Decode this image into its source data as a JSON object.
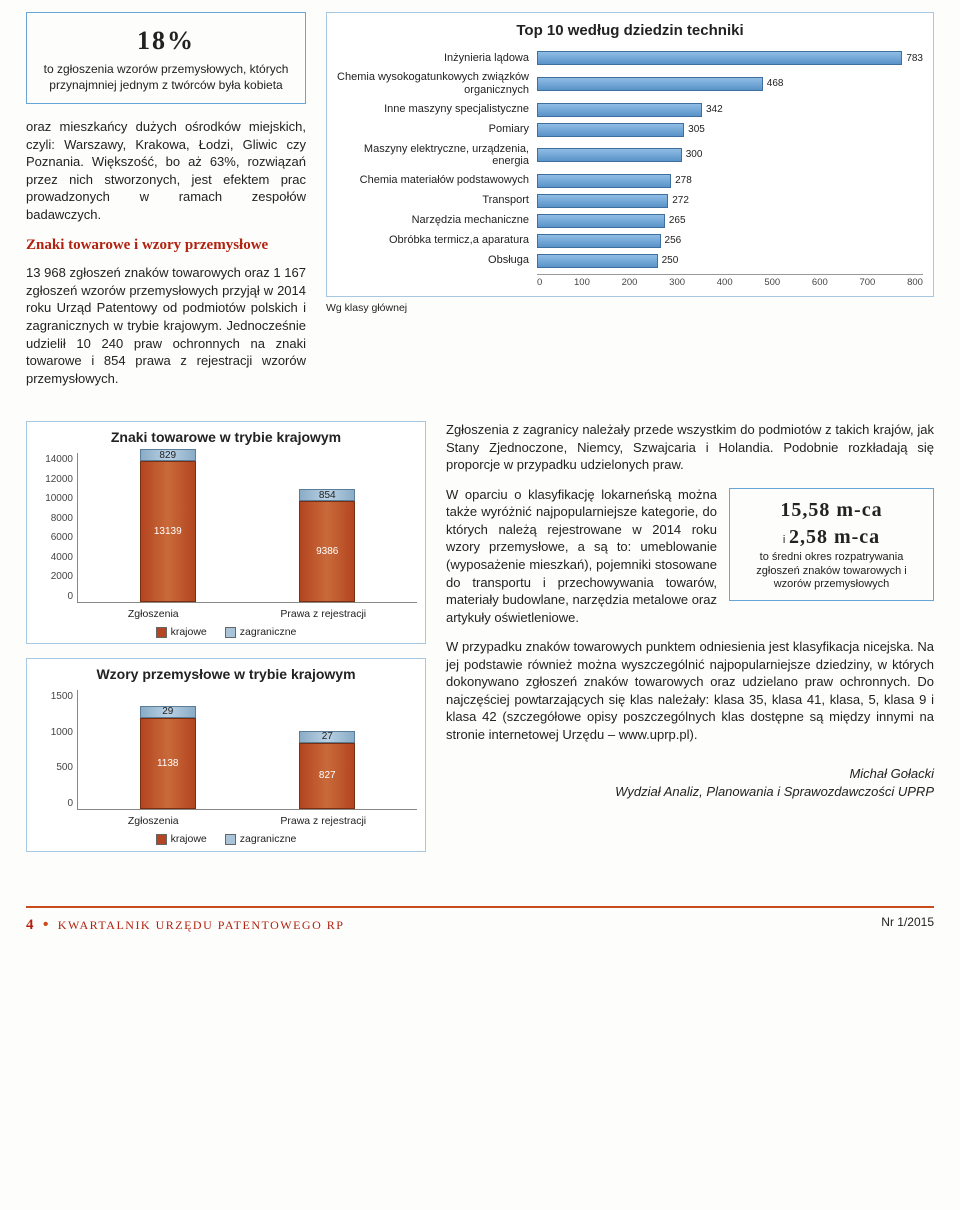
{
  "stat_box": {
    "value": "18%",
    "desc": "to zgłoszenia wzorów przemysłowych, których przynajmniej jednym z twórców była kobieta"
  },
  "para1": "oraz mieszkańcy dużych ośrodków miejskich, czyli: Warszawy, Krakowa, Łodzi, Gliwic czy Poznania. Większość, bo aż 63%, rozwiązań przez nich stworzonych, jest efektem prac prowadzonych w ramach zespołów badawczych.",
  "subhead": "Znaki towarowe i wzory przemysłowe",
  "para2": "13 968 zgłoszeń znaków towarowych oraz 1 167 zgłoszeń wzorów przemysłowych przyjął w 2014 roku Urząd Patentowy od podmiotów polskich i zagranicznych w trybie krajowym. Jednocześnie udzielił 10 240 praw ochronnych na znaki towarowe i 854 prawa z rejestracji wzorów przemysłowych.",
  "top10": {
    "title": "Top 10 według dziedzin techniki",
    "caption": "Wg klasy głównej",
    "xmax": 800,
    "xticks": [
      "0",
      "100",
      "200",
      "300",
      "400",
      "500",
      "600",
      "700",
      "800"
    ],
    "bar_color": "#6ea3d4",
    "items": [
      {
        "label": "Inżynieria lądowa",
        "value": 783
      },
      {
        "label": "Chemia wysokogatunkowych związków organicznych",
        "value": 468
      },
      {
        "label": "Inne maszyny specjalistyczne",
        "value": 342
      },
      {
        "label": "Pomiary",
        "value": 305
      },
      {
        "label": "Maszyny elektryczne, urządzenia, energia",
        "value": 300
      },
      {
        "label": "Chemia materiałów podstawowych",
        "value": 278
      },
      {
        "label": "Transport",
        "value": 272
      },
      {
        "label": "Narzędzia mechaniczne",
        "value": 265
      },
      {
        "label": "Obróbka termicz,a aparatura",
        "value": 256
      },
      {
        "label": "Obsługa",
        "value": 250
      }
    ]
  },
  "znaki_chart": {
    "title": "Znaki towarowe w trybie krajowym",
    "ymax": 14000,
    "yticks": [
      "14000",
      "12000",
      "10000",
      "8000",
      "6000",
      "4000",
      "2000",
      "0"
    ],
    "categories": [
      "Zgłoszenia",
      "Prawa z rejestracji"
    ],
    "domestic": [
      13139,
      9386
    ],
    "foreign": [
      829,
      854
    ],
    "color_domestic": "#b34520",
    "color_foreign": "#a9c3d8"
  },
  "wzory_chart": {
    "title": "Wzory przemysłowe w trybie krajowym",
    "ymax": 1500,
    "yticks": [
      "1500",
      "1000",
      "500",
      "0"
    ],
    "categories": [
      "Zgłoszenia",
      "Prawa z rejestracji"
    ],
    "domestic": [
      1138,
      827
    ],
    "foreign": [
      29,
      27
    ],
    "color_domestic": "#b34520",
    "color_foreign": "#a9c3d8"
  },
  "legend": {
    "domestic": "krajowe",
    "foreign": "zagraniczne"
  },
  "right_text": {
    "p1": "Zgłoszenia z zagranicy należały przede wszystkim do podmiotów z takich krajów, jak Stany Zjednoczone, Niemcy, Szwajcaria i Holandia. Podobnie rozkładają się proporcje w przypadku udzielonych praw.",
    "p2a": "W oparciu o klasyfikację lokarneńską można także wyróżnić najpopularniejsze kategorie, do których należą rejestrowane w 2014 roku wzory przemysłowe, a są to: umeblowanie (wyposażenie mieszkań), pojemniki stosowane do transportu i przechowywania towarów, materiały budowlane, narzędzia metalowe oraz artykuły oświetleniowe.",
    "p3": "W przypadku znaków towarowych punktem odniesienia jest klasyfikacja nicejska. Na jej podstawie również można wyszczególnić najpopularniejsze dziedziny, w których dokonywano zgłoszeń znaków towarowych oraz udzielano praw ochronnych. Do najczęściej powtarzających się klas należały: klasa 35, klasa 41, klasa, 5, klasa 9 i klasa 42 (szczegółowe opisy poszczególnych klas dostępne są między innymi na stronie internetowej Urzędu – www.uprp.pl)."
  },
  "inline_stat": {
    "l1": "15,58 m-ca",
    "l2_prefix": "i",
    "l2": "2,58 m-ca",
    "desc": "to średni okres rozpatrywania zgłoszeń znaków towarowych i wzorów przemysłowych"
  },
  "author": {
    "name": "Michał Gołacki",
    "unit": "Wydział Analiz, Planowania i Sprawozdawczości UPRP"
  },
  "footer": {
    "page": "4",
    "title": "KWARTALNIK URZĘDU PATENTOWEGO RP",
    "issue": "Nr 1/2015"
  }
}
